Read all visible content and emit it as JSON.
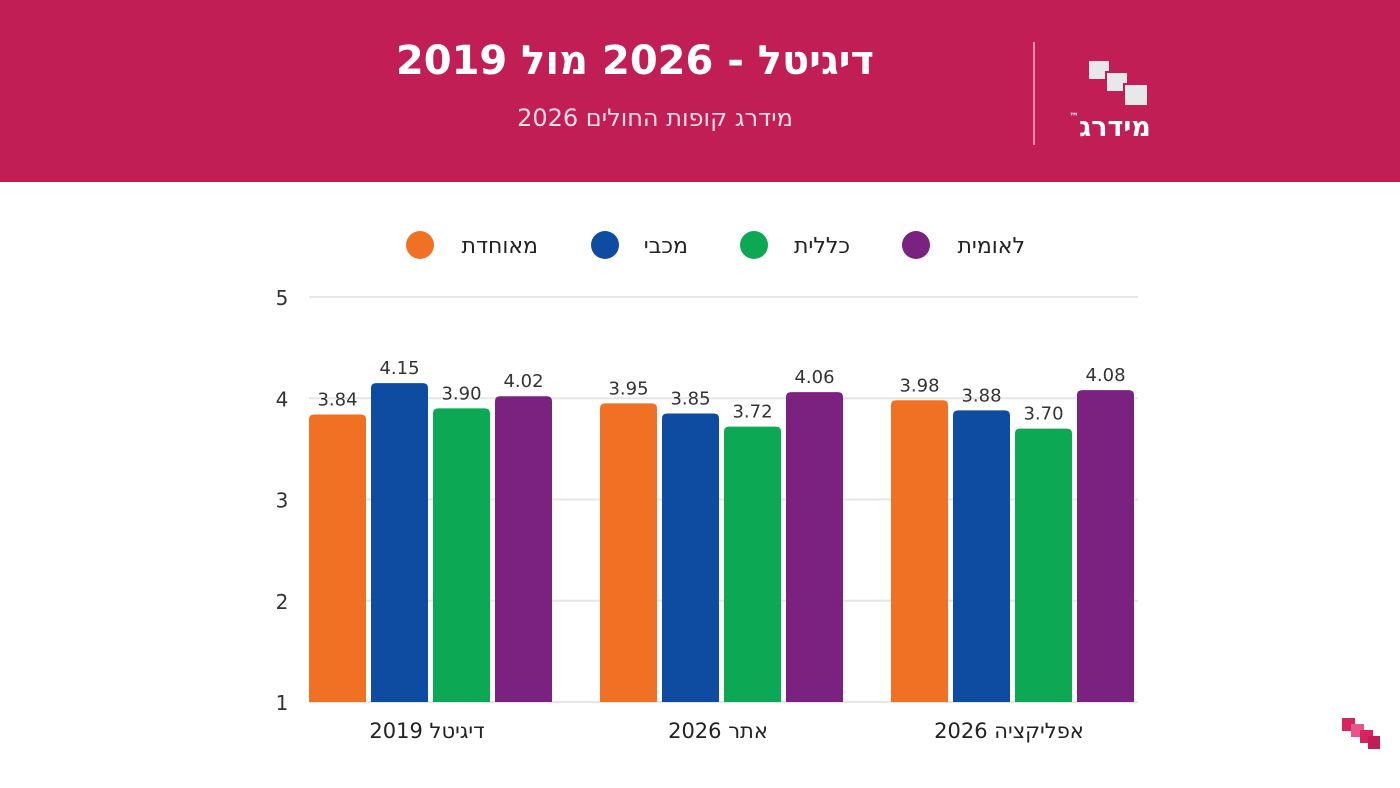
{
  "header": {
    "title": "דיגיטל - 2026 מול 2019",
    "subtitle": "מידרג קופות החולים 2026",
    "logo_text": "מידרג",
    "logo_tm": "™",
    "background_color": "#c01e55"
  },
  "chart_data": {
    "type": "bar",
    "categories": [
      "דיגיטל 2019",
      "אתר 2026",
      "אפליקציה 2026"
    ],
    "series": [
      {
        "name": "מאוחדת",
        "color": "#f07024",
        "values": [
          3.84,
          3.95,
          3.98
        ],
        "labels": [
          "3.84",
          "3.95",
          "3.98"
        ]
      },
      {
        "name": "מכבי",
        "color": "#0e4ca1",
        "values": [
          4.15,
          3.85,
          3.88
        ],
        "labels": [
          "4.15",
          "3.85",
          "3.88"
        ]
      },
      {
        "name": "כללית",
        "color": "#0da854",
        "values": [
          3.9,
          3.72,
          3.7
        ],
        "labels": [
          "3.90",
          "3.72",
          "3.70"
        ]
      },
      {
        "name": "לאומית",
        "color": "#7b2180",
        "values": [
          4.02,
          4.06,
          4.08
        ],
        "labels": [
          "4.02",
          "4.06",
          "4.08"
        ]
      }
    ],
    "ylim": [
      1,
      5
    ],
    "yticks": [
      "1",
      "2",
      "3",
      "4",
      "5"
    ],
    "grid": true,
    "legend_position": "top-center",
    "title": "",
    "xlabel": "",
    "ylabel": ""
  }
}
